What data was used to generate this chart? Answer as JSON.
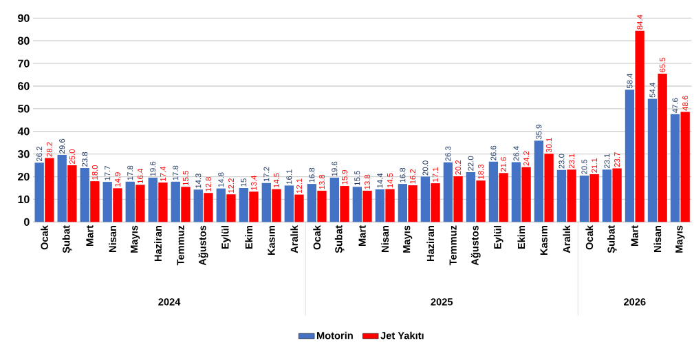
{
  "chart_data": {
    "type": "bar",
    "categories": [
      "Ocak",
      "Şubat",
      "Mart",
      "Nisan",
      "Mayıs",
      "Haziran",
      "Temmuz",
      "Ağustos",
      "Eylül",
      "Ekim",
      "Kasım",
      "Aralık",
      "Ocak",
      "Şubat",
      "Mart",
      "Nisan",
      "Mayıs",
      "Haziran",
      "Temmuz",
      "Ağustos",
      "Eylül",
      "Ekim",
      "Kasım",
      "Aralık",
      "Ocak",
      "Şubat",
      "Mart",
      "Nisan",
      "Mayıs"
    ],
    "series": [
      {
        "name": "Motorin",
        "color": "#4472c4",
        "values": [
          26.2,
          29.6,
          23.8,
          17.7,
          17.8,
          19.6,
          17.8,
          14.3,
          14.8,
          15,
          17.2,
          16.1,
          16.8,
          19.6,
          15.5,
          14.4,
          16.8,
          20.0,
          26.3,
          22.0,
          26.6,
          26.4,
          35.9,
          23.0,
          20.5,
          23.1,
          58.4,
          54.4,
          47.6
        ],
        "value_labels": [
          "26.2",
          "29.6",
          "23.8",
          "17.7",
          "17.8",
          "19.6",
          "17.8",
          "14.3",
          "14.8",
          "15",
          "17.2",
          "16.1",
          "16.8",
          "19.6",
          "15.5",
          "14.4",
          "16.8",
          "20.0",
          "26.3",
          "22.0",
          "26.6",
          "26.4",
          "35.9",
          "23.0",
          "20.5",
          "23.1",
          "58.4",
          "54.4",
          "47.6"
        ]
      },
      {
        "name": "Jet Yakıtı",
        "color": "#ff0000",
        "values": [
          28.2,
          25.0,
          18.0,
          14.9,
          16.4,
          17.4,
          15.5,
          12.8,
          12.2,
          13.4,
          14.5,
          12.1,
          13.8,
          15.9,
          13.8,
          14.5,
          16.2,
          17.1,
          20.2,
          18.3,
          21.6,
          24.2,
          30.1,
          23.1,
          21.1,
          23.7,
          84.4,
          65.5,
          48.6
        ],
        "value_labels": [
          "28.2",
          "25.0",
          "18.0",
          "14.9",
          "16.4",
          "17.4",
          "15.5",
          "12.8",
          "12.2",
          "13.4",
          "14.5",
          "12.1",
          "13.8",
          "15.9",
          "13.8",
          "14.5",
          "16.2",
          "17.1",
          "20.2",
          "18.3",
          "21.6",
          "24.2",
          "30.1",
          "23.1",
          "21.1",
          "23.7",
          "84.4",
          "65.5",
          "48.6"
        ]
      }
    ],
    "ylim": [
      0,
      90
    ],
    "yticks": [
      0,
      10,
      20,
      30,
      40,
      50,
      60,
      70,
      80,
      90
    ],
    "grid": "y",
    "legend": "bottom",
    "annotations": [
      "2024",
      "2025",
      "2026"
    ]
  }
}
